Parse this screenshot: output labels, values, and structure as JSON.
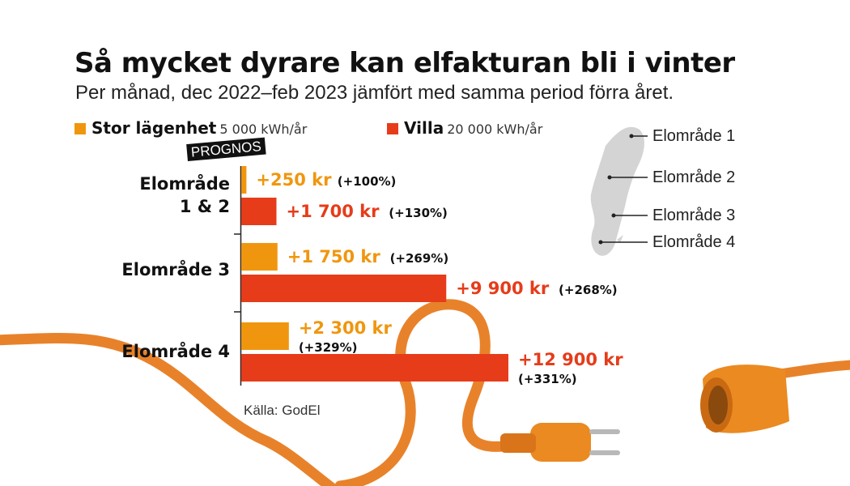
{
  "title": "Så mycket dyrare kan elfakturan bli i vinter",
  "subtitle": "Per månad, dec 2022–feb 2023 jämfört med samma period förra året.",
  "legend": [
    {
      "name": "Stor lägenhet",
      "unit": "5 000 kWh/år",
      "color": "#f0960e"
    },
    {
      "name": "Villa",
      "unit": "20 000 kWh/år",
      "color": "#e63c1a"
    }
  ],
  "prognos_label": "PROGNOS",
  "source": "Källa: GodEl",
  "regions": [
    "Elområde 1",
    "Elområde 2",
    "Elområde 3",
    "Elområde 4"
  ],
  "chart_data": {
    "type": "bar",
    "orientation": "horizontal",
    "categories": [
      [
        "Elområde",
        "1 & 2"
      ],
      [
        "Elområde 3"
      ],
      [
        "Elområde 4"
      ]
    ],
    "series": [
      {
        "name": "Stor lägenhet",
        "color": "#f0960e",
        "values": [
          250,
          1750,
          2300
        ],
        "labels": [
          [
            "+250 kr",
            "(+100%)"
          ],
          [
            "+1 750 kr",
            "(+269%)"
          ],
          [
            "+2 300 kr",
            "(+329%)"
          ]
        ]
      },
      {
        "name": "Villa",
        "color": "#e63c1a",
        "values": [
          1700,
          9900,
          12900
        ],
        "labels": [
          [
            "+1 700 kr",
            "(+130%)"
          ],
          [
            "+9 900 kr",
            "(+268%)"
          ],
          [
            "+12 900 kr",
            "(+331%)"
          ]
        ]
      }
    ],
    "xlim": [
      0,
      12900
    ],
    "grid": false,
    "legend_position": "top-left"
  }
}
